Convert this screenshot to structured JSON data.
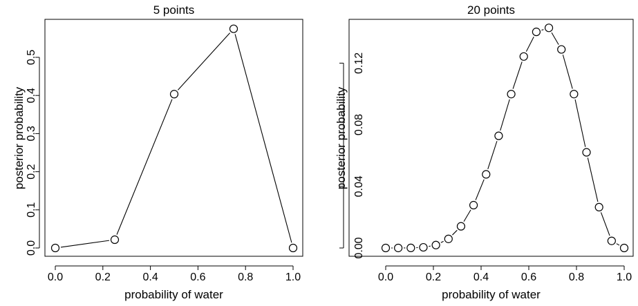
{
  "chart_data": [
    {
      "type": "line",
      "title": "5 points",
      "xlabel": "probability of water",
      "ylabel": "posterior probability",
      "xlim": [
        0,
        1
      ],
      "ylim": [
        0,
        0.575
      ],
      "xticks": [
        "0.0",
        "0.2",
        "0.4",
        "0.6",
        "0.8",
        "1.0"
      ],
      "yticks": [
        "0.0",
        "0.1",
        "0.2",
        "0.3",
        "0.4",
        "0.5"
      ],
      "x": [
        0,
        0.25,
        0.5,
        0.75,
        1
      ],
      "y": [
        0,
        0.0217,
        0.4035,
        0.5748,
        0
      ],
      "marker": "open-circle",
      "grid": false
    },
    {
      "type": "line",
      "title": "20 points",
      "xlabel": "probability of water",
      "ylabel": "posterior probability",
      "xlim": [
        0,
        1
      ],
      "ylim": [
        0,
        0.143
      ],
      "xticks": [
        "0.0",
        "0.2",
        "0.4",
        "0.6",
        "0.8",
        "1.0"
      ],
      "yticks": [
        "0.00",
        "0.04",
        "0.08",
        "0.12"
      ],
      "x": [
        0,
        0.0526,
        0.1053,
        0.1579,
        0.2105,
        0.2632,
        0.3158,
        0.3684,
        0.4211,
        0.4737,
        0.5263,
        0.5789,
        0.6316,
        0.6842,
        0.7368,
        0.7895,
        0.8421,
        0.8947,
        0.9474,
        1
      ],
      "y": [
        0,
        8e-07,
        4.3e-05,
        0.00041,
        0.00189,
        0.00589,
        0.01406,
        0.0278,
        0.0478,
        0.0728,
        0.0999,
        0.1243,
        0.1403,
        0.1429,
        0.1289,
        0.0999,
        0.0621,
        0.0265,
        0.0046,
        0
      ],
      "marker": "open-circle",
      "grid": false
    }
  ]
}
